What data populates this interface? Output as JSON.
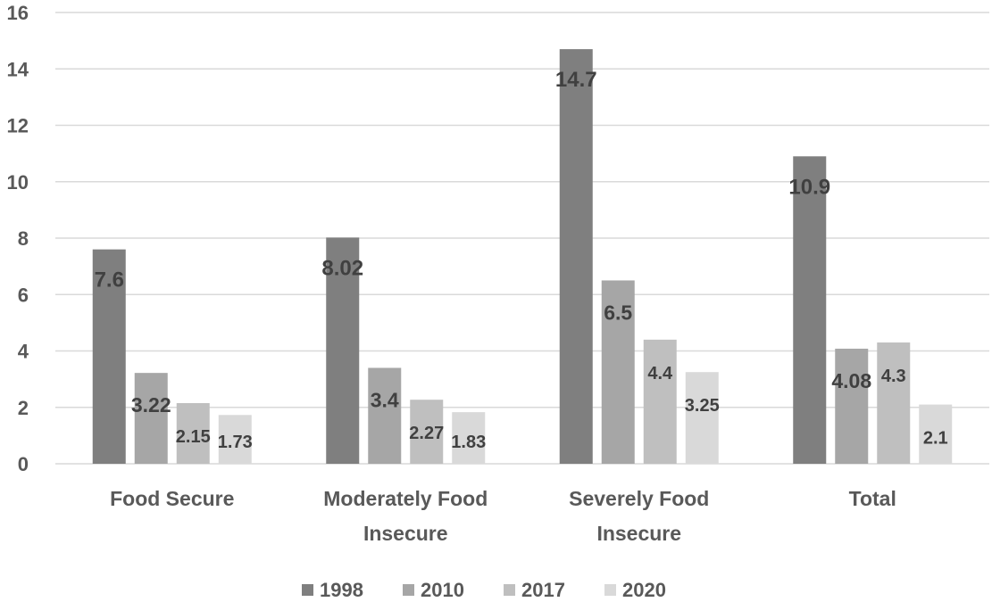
{
  "chart_data": {
    "type": "bar",
    "title": "",
    "xlabel": "",
    "ylabel": "",
    "ylim": [
      0,
      16
    ],
    "yticks": [
      0,
      2,
      4,
      6,
      8,
      10,
      12,
      14,
      16
    ],
    "grid": true,
    "legend_position": "bottom",
    "categories": [
      [
        "Food Secure"
      ],
      [
        "Moderately Food",
        "Insecure"
      ],
      [
        "Severely Food",
        "Insecure"
      ],
      [
        "Total"
      ]
    ],
    "series": [
      {
        "name": "1998",
        "color": "#7f7f7f",
        "values": [
          7.6,
          8.02,
          14.7,
          10.9
        ],
        "labels": [
          "7.6",
          "8.02",
          "14.7",
          "10.9"
        ]
      },
      {
        "name": "2010",
        "color": "#a6a6a6",
        "values": [
          3.22,
          3.4,
          6.5,
          4.08
        ],
        "labels": [
          "3.22",
          "3.4",
          "6.5",
          "4.08"
        ]
      },
      {
        "name": "2017",
        "color": "#bfbfbf",
        "values": [
          2.15,
          2.27,
          4.4,
          4.3
        ],
        "labels": [
          "2.15",
          "2.27",
          "4.4",
          "4.3"
        ]
      },
      {
        "name": "2020",
        "color": "#d9d9d9",
        "values": [
          1.73,
          1.83,
          3.25,
          2.1
        ],
        "labels": [
          "1.73",
          "1.83",
          "3.25",
          "2.1"
        ]
      }
    ]
  }
}
